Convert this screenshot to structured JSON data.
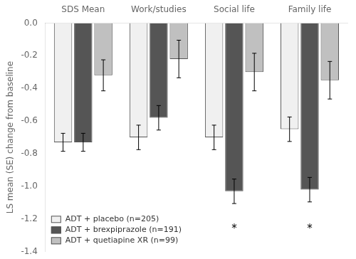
{
  "chart_data": {
    "type": "bar",
    "categories": [
      "SDS Mean",
      "Work/studies",
      "Social life",
      "Family life"
    ],
    "series": [
      {
        "name": "ADT + placebo (n=205)",
        "color": "#f0f0f0",
        "values": [
          -0.73,
          -0.7,
          -0.7,
          -0.65
        ],
        "errors": [
          0.055,
          0.075,
          0.075,
          0.075
        ]
      },
      {
        "name": "ADT + brexpiprazole (n=191)",
        "color": "#555555",
        "values": [
          -0.73,
          -0.58,
          -1.03,
          -1.02
        ],
        "errors": [
          0.055,
          0.075,
          0.075,
          0.075
        ]
      },
      {
        "name": "ADT + quetiapine XR (n=99)",
        "color": "#c0c0c0",
        "values": [
          -0.32,
          -0.22,
          -0.3,
          -0.35
        ],
        "errors": [
          0.095,
          0.115,
          0.115,
          0.115
        ]
      }
    ],
    "ylabel": "LS mean (SE) change from baseline",
    "ylim": [
      -1.4,
      0.0
    ],
    "yticks": [
      {
        "value": 0.0,
        "label": "0.0"
      },
      -0.2,
      -0.4,
      -0.6,
      -0.8,
      {
        "value": -1.0,
        "label": "-1.0"
      },
      -1.2,
      -1.4
    ],
    "annotations": [
      {
        "text": "*",
        "category": "Social life",
        "series": "ADT + brexpiprazole (n=191)",
        "y": -1.26
      },
      {
        "text": "*",
        "category": "Family life",
        "series": "ADT + brexpiprazole (n=191)",
        "y": -1.26
      }
    ],
    "legend": "lower left",
    "grid": false
  }
}
